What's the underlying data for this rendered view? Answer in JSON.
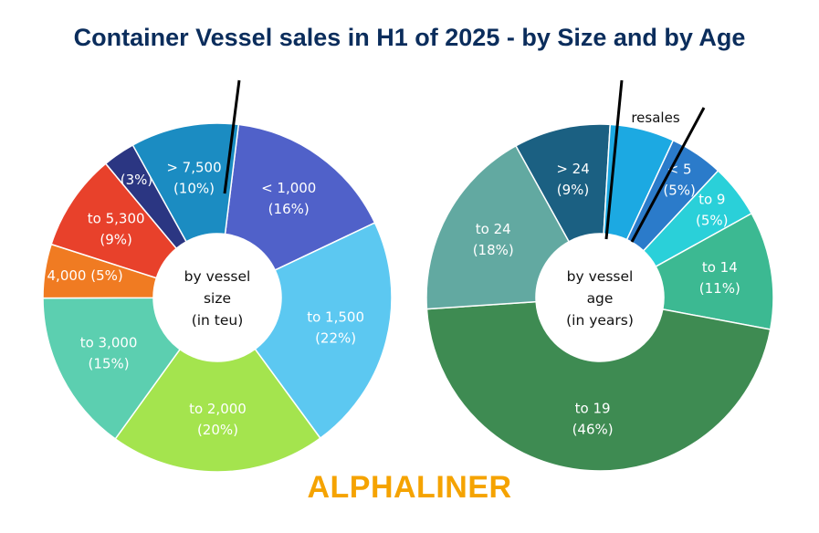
{
  "title": "Container Vessel sales in H1 of 2025 - by Size and by Age",
  "brand": "ALPHALINER",
  "chart_data": [
    {
      "type": "pie",
      "center_label": [
        "by vessel",
        "size",
        "(in teu)"
      ],
      "slices": [
        {
          "name": "< 1,000",
          "value": 16,
          "label": [
            "< 1,000",
            "(16%)"
          ],
          "color": "#5061c9"
        },
        {
          "name": "to 1,500",
          "value": 22,
          "label": [
            "to 1,500",
            "(22%)"
          ],
          "color": "#5cc8f1"
        },
        {
          "name": "to 2,000",
          "value": 20,
          "label": [
            "to 2,000",
            "(20%)"
          ],
          "color": "#a4e44e"
        },
        {
          "name": "to 3,000",
          "value": 15,
          "label": [
            "to 3,000",
            "(15%)"
          ],
          "color": "#5ccfb0"
        },
        {
          "name": "to 4,000",
          "value": 5,
          "label": [
            "to 4,000 (5%)"
          ],
          "color": "#f07b22"
        },
        {
          "name": "to 5,300",
          "value": 9,
          "label": [
            "to 5,300",
            "(9%)"
          ],
          "color": "#e8412b"
        },
        {
          "name": "7,500",
          "value": 3,
          "label": [
            "(3%)"
          ],
          "color": "#2b3682"
        },
        {
          "name": "> 7,500",
          "value": 10,
          "label": [
            "> 7,500",
            "(10%)"
          ],
          "color": "#1b8cc2"
        }
      ]
    },
    {
      "type": "pie",
      "center_label": [
        "by vessel",
        "age",
        "(in years)"
      ],
      "annotation": "resales",
      "slices": [
        {
          "name": "> 24",
          "value": 9,
          "label": [
            "> 24",
            "(9%)"
          ],
          "color": "#1b6082"
        },
        {
          "name": "resales",
          "value": 6,
          "label": [],
          "color": "#1ca9e2"
        },
        {
          "name": "< 5",
          "value": 5,
          "label": [
            "< 5",
            "(5%)"
          ],
          "color": "#2b7bca"
        },
        {
          "name": "to 9",
          "value": 5,
          "label": [
            "to 9",
            "(5%)"
          ],
          "color": "#2ad0d9"
        },
        {
          "name": "to 14",
          "value": 11,
          "label": [
            "to 14",
            "(11%)"
          ],
          "color": "#3cb992"
        },
        {
          "name": "to 19",
          "value": 46,
          "label": [
            "to 19",
            "(46%)"
          ],
          "color": "#3e8b52"
        },
        {
          "name": "to 24",
          "value": 18,
          "label": [
            "to 24",
            "(18%)"
          ],
          "color": "#62a9a1"
        }
      ]
    }
  ]
}
